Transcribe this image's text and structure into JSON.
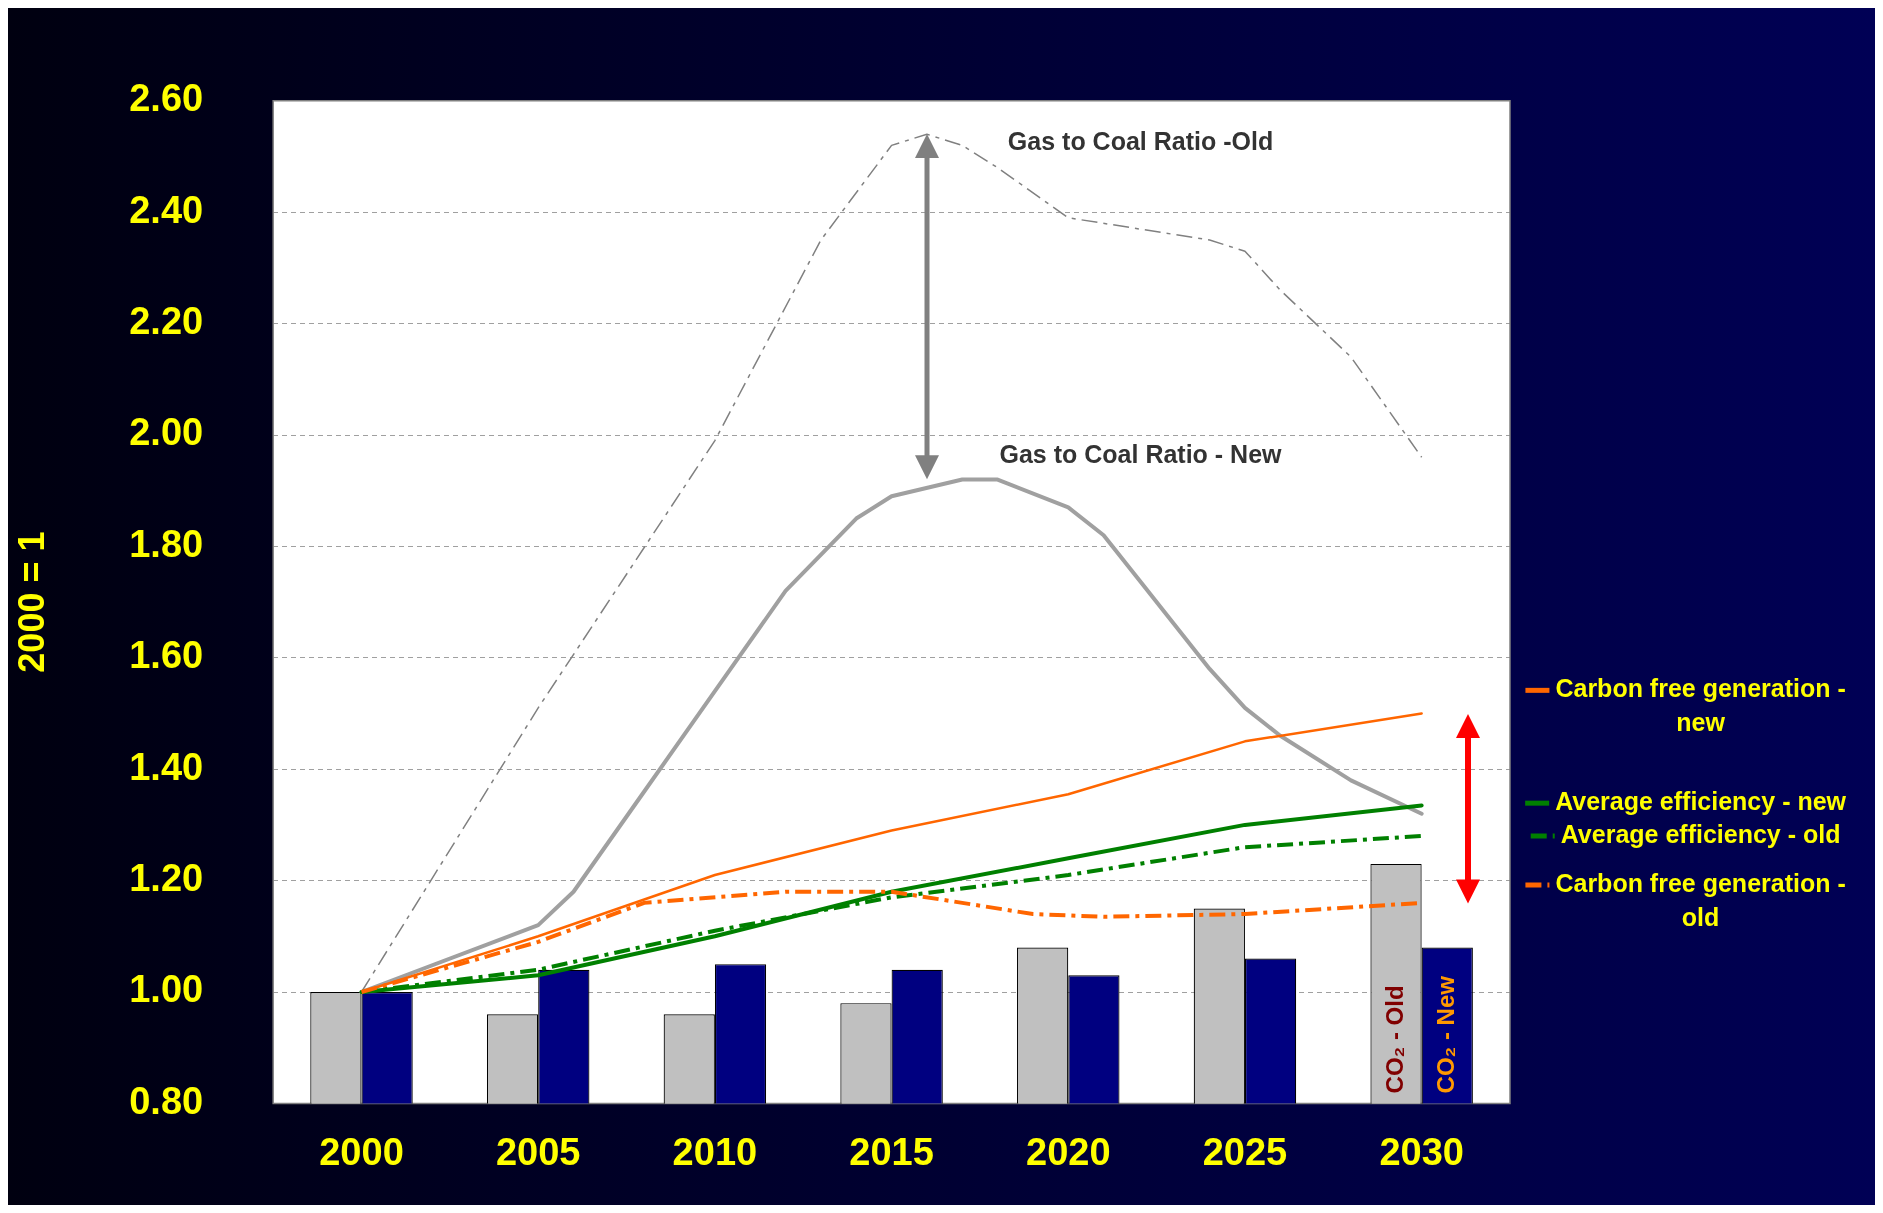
{
  "chart_data": {
    "type": "bar",
    "ylabel": "2000 = 1",
    "x": [
      2000,
      2005,
      2010,
      2015,
      2020,
      2025,
      2030
    ],
    "xlim": [
      1997.5,
      2032.5
    ],
    "xticks": [
      2000,
      2005,
      2010,
      2015,
      2020,
      2025,
      2030
    ],
    "ylim": [
      0.8,
      2.6
    ],
    "yticks": [
      {
        "value": 0.8,
        "label": "0.80"
      },
      {
        "value": 1.0,
        "label": "1.00"
      },
      {
        "value": 1.2,
        "label": "1.20"
      },
      {
        "value": 1.4,
        "label": "1.40"
      },
      {
        "value": 1.6,
        "label": "1.60"
      },
      {
        "value": 1.8,
        "label": "1.80"
      },
      {
        "value": 2.0,
        "label": "2.00"
      },
      {
        "value": 2.2,
        "label": "2.20"
      },
      {
        "value": 2.4,
        "label": "2.40"
      },
      {
        "value": 2.6,
        "label": "2.60"
      }
    ],
    "grid": "y",
    "legend": "right",
    "marker": "none",
    "series": [
      {
        "name": "CO₂ - Old",
        "color": "#c0c0c0",
        "values": [
          1.0,
          0.96,
          0.96,
          0.98,
          1.08,
          1.15,
          1.23
        ]
      },
      {
        "name": "CO₂ - New",
        "color": "#000080",
        "values": [
          1.0,
          1.04,
          1.05,
          1.04,
          1.03,
          1.06,
          1.08
        ]
      },
      {
        "name": "Gas to Coal Ratio -Old",
        "type": "line",
        "color": "#808080",
        "line_style": "dashed",
        "x": [
          2000,
          2005,
          2010,
          2013,
          2015,
          2016,
          2017,
          2018,
          2020,
          2022,
          2024,
          2025,
          2026,
          2028,
          2030
        ],
        "values": [
          1.0,
          1.51,
          1.99,
          2.35,
          2.52,
          2.54,
          2.52,
          2.48,
          2.39,
          2.37,
          2.35,
          2.33,
          2.26,
          2.14,
          1.96
        ]
      },
      {
        "name": "Gas to Coal Ratio - New",
        "type": "line",
        "color": "#a0a0a0",
        "line_style": "solid",
        "x": [
          2000,
          2005,
          2006,
          2008,
          2010,
          2012,
          2014,
          2015,
          2017,
          2018,
          2020,
          2021,
          2022,
          2024,
          2025,
          2026,
          2028,
          2030
        ],
        "values": [
          1.0,
          1.12,
          1.18,
          1.36,
          1.54,
          1.72,
          1.85,
          1.89,
          1.92,
          1.92,
          1.87,
          1.82,
          1.74,
          1.58,
          1.51,
          1.46,
          1.38,
          1.32
        ]
      },
      {
        "name": "Carbon free generation - new",
        "type": "line",
        "color": "#ff6600",
        "line_style": "solid",
        "x": [
          2000,
          2005,
          2010,
          2015,
          2020,
          2025,
          2030
        ],
        "values": [
          1.0,
          1.1,
          1.21,
          1.29,
          1.355,
          1.45,
          1.5
        ]
      },
      {
        "name": "Average efficiency - new",
        "type": "line",
        "color": "#008000",
        "line_style": "solid",
        "x": [
          2000,
          2005,
          2010,
          2015,
          2020,
          2025,
          2030
        ],
        "values": [
          1.0,
          1.03,
          1.1,
          1.18,
          1.24,
          1.3,
          1.335
        ]
      },
      {
        "name": "Average efficiency - old",
        "type": "line",
        "color": "#008000",
        "line_style": "dashed",
        "x": [
          2000,
          2005,
          2010,
          2015,
          2020,
          2025,
          2030
        ],
        "values": [
          1.0,
          1.04,
          1.11,
          1.17,
          1.21,
          1.26,
          1.28
        ]
      },
      {
        "name": "Carbon free generation - old",
        "type": "line",
        "color": "#ff6600",
        "line_style": "dashed",
        "x": [
          2000,
          2005,
          2008,
          2012,
          2015,
          2017,
          2019,
          2021,
          2025,
          2030
        ],
        "values": [
          1.0,
          1.09,
          1.16,
          1.18,
          1.18,
          1.16,
          1.14,
          1.135,
          1.14,
          1.16
        ]
      }
    ]
  }
}
